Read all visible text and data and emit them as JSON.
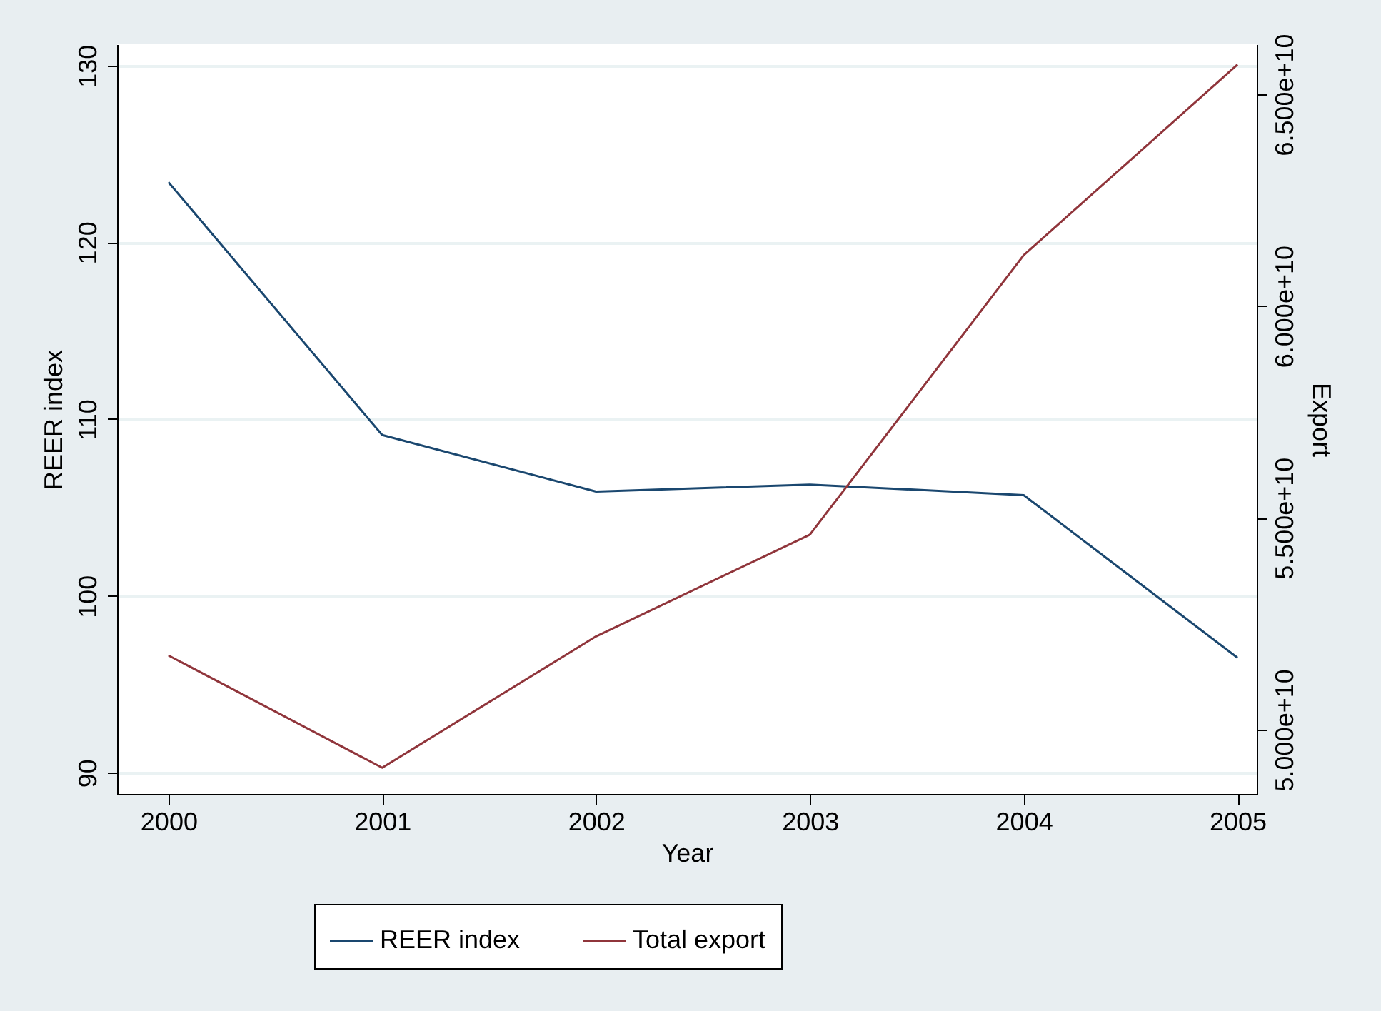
{
  "chart_data": {
    "type": "line",
    "xlabel": "Year",
    "ylabel": "REER index",
    "y2label": "Export",
    "x": [
      2000,
      2001,
      2002,
      2003,
      2004,
      2005
    ],
    "series": [
      {
        "name": "REER index",
        "color": "#1a476f",
        "values": [
          123.4,
          109.1,
          105.9,
          106.3,
          105.7,
          96.5
        ]
      },
      {
        "name": "Total export",
        "color": "#90353b",
        "axis": "y2",
        "values": [
          51750000000,
          49100000000,
          52200000000,
          54600000000,
          61200000000,
          65700000000
        ]
      }
    ],
    "xlim": [
      1999.76,
      2005.09
    ],
    "xticks": [
      2000,
      2001,
      2002,
      2003,
      2004,
      2005
    ],
    "ylim": [
      88.8,
      131.2
    ],
    "yticks": [
      90,
      100,
      110,
      120,
      130
    ],
    "y2lim": [
      48480000000,
      66180000000
    ],
    "y2ticks": [
      {
        "value": 50000000000,
        "label": "5.000e+10"
      },
      {
        "value": 55000000000,
        "label": "5.500e+10"
      },
      {
        "value": 60000000000,
        "label": "6.000e+10"
      },
      {
        "value": 65000000000,
        "label": "6.500e+10"
      }
    ],
    "grid": "y",
    "legend": "bottom",
    "marker": "none",
    "line_style": "solid"
  }
}
